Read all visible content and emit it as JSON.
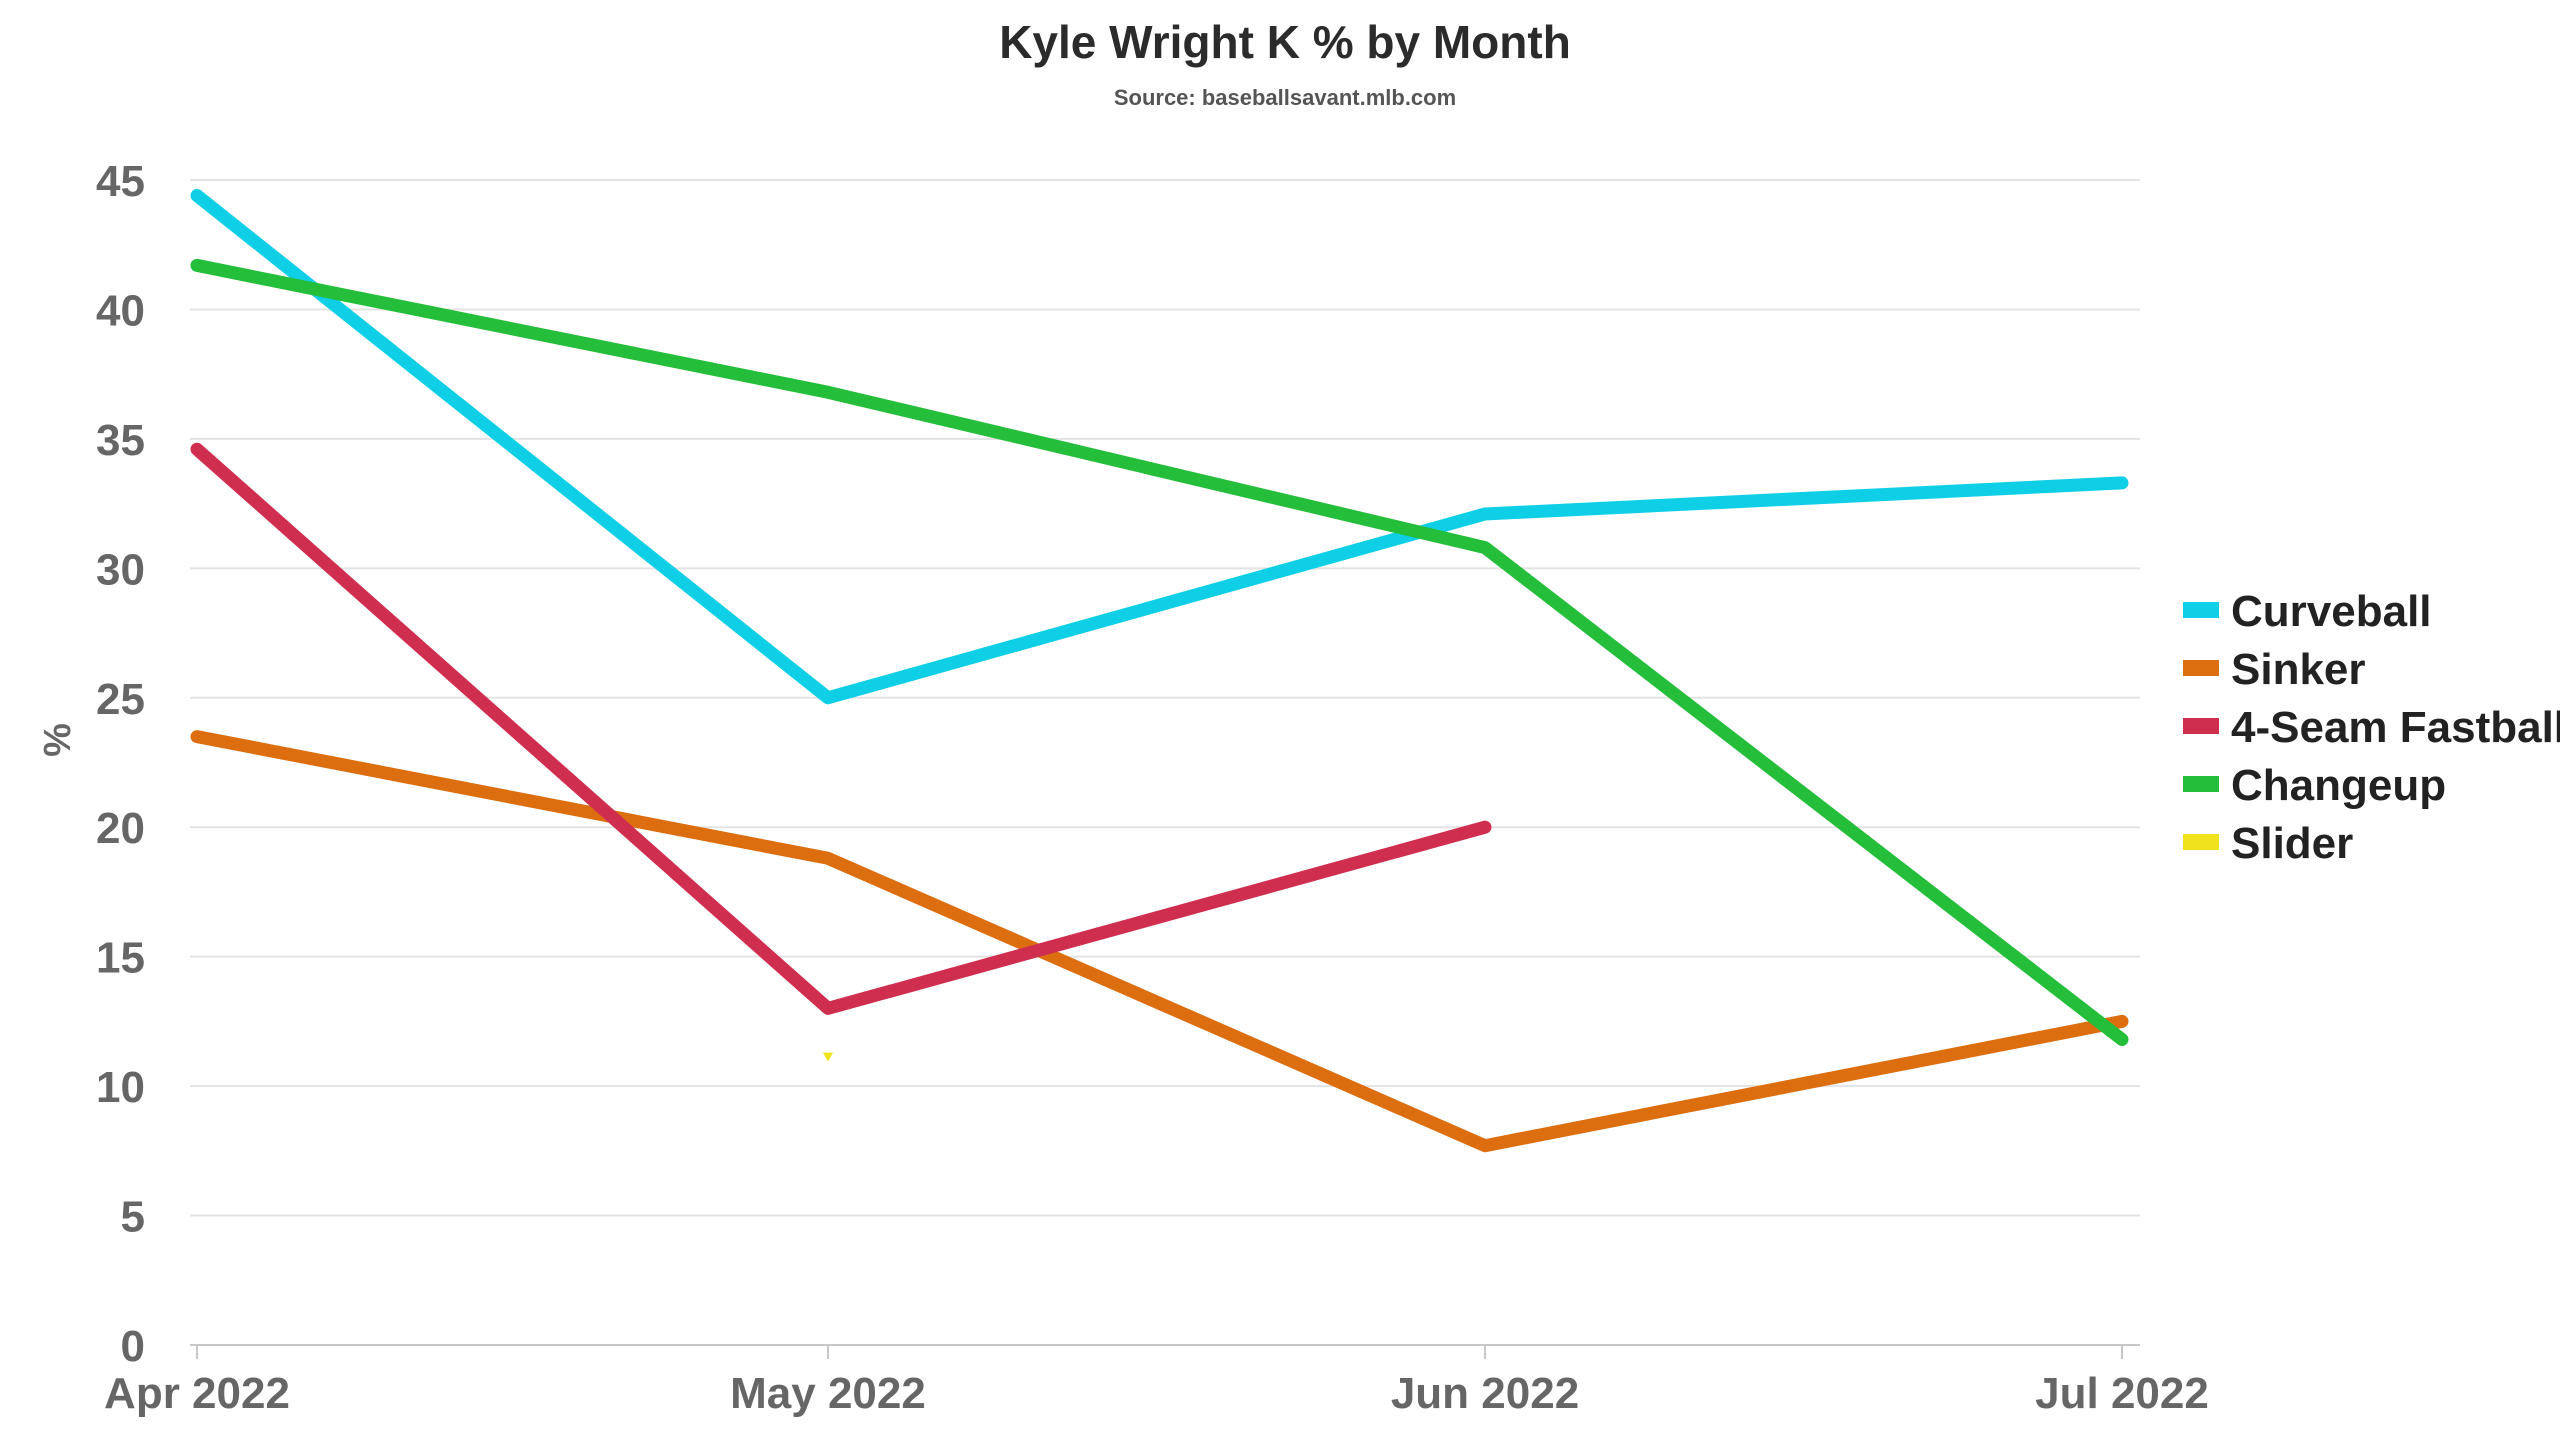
{
  "chart_data": {
    "type": "line",
    "title": "Kyle Wright K % by Month",
    "subtitle": "Source: baseballsavant.mlb.com",
    "xlabel": "",
    "ylabel": "%",
    "categories": [
      "Apr 2022",
      "May 2022",
      "Jun 2022",
      "Jul 2022"
    ],
    "ylim": [
      0,
      45
    ],
    "yticks": [
      0,
      5,
      10,
      15,
      20,
      25,
      30,
      35,
      40,
      45
    ],
    "grid": true,
    "legend_position": "right",
    "series": [
      {
        "name": "Curveball",
        "color": "#0fcfe6",
        "values": [
          44.4,
          25.0,
          32.1,
          33.3
        ]
      },
      {
        "name": "Sinker",
        "color": "#dc6e0f",
        "values": [
          23.5,
          18.8,
          7.7,
          12.5
        ]
      },
      {
        "name": "4-Seam Fastball",
        "color": "#d02e4f",
        "values": [
          34.6,
          13.0,
          20.0,
          null
        ]
      },
      {
        "name": "Changeup",
        "color": "#24be3a",
        "values": [
          41.7,
          36.8,
          30.8,
          11.8
        ]
      },
      {
        "name": "Slider",
        "color": "#f0e21c",
        "values": [
          null,
          11.1,
          null,
          null
        ]
      }
    ]
  }
}
